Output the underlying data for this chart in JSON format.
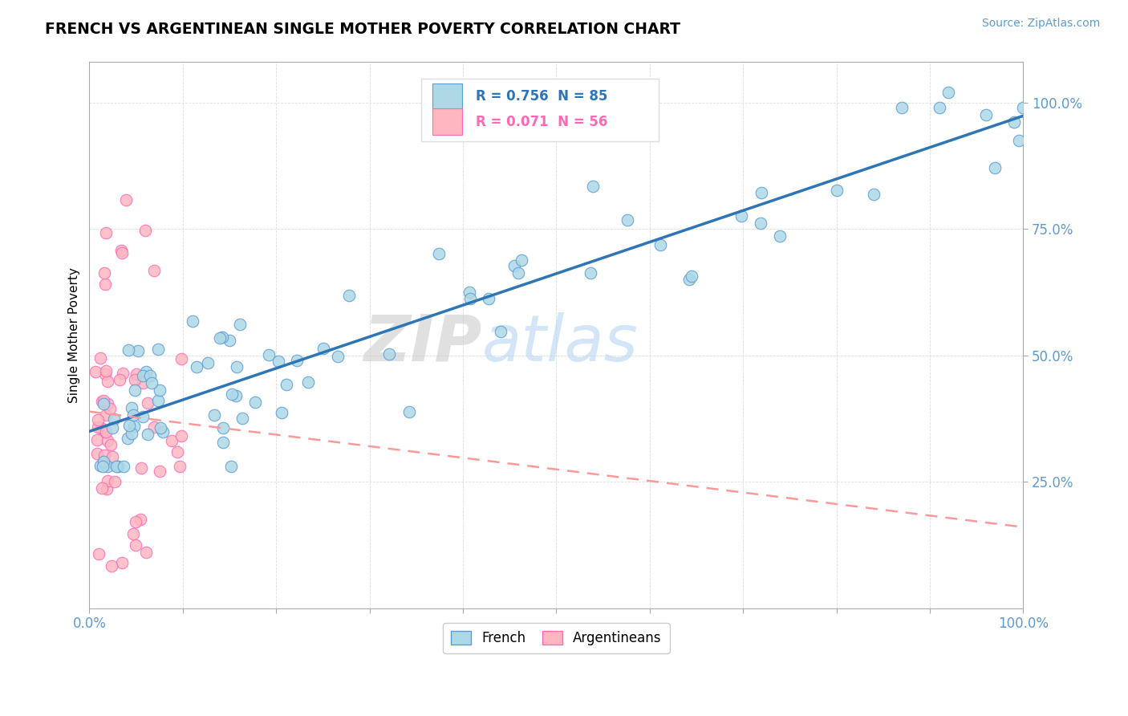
{
  "title": "FRENCH VS ARGENTINEAN SINGLE MOTHER POVERTY CORRELATION CHART",
  "source": "Source: ZipAtlas.com",
  "ylabel": "Single Mother Poverty",
  "xlim": [
    0.0,
    1.0
  ],
  "ylim": [
    0.0,
    1.08
  ],
  "french_color": "#ADD8E6",
  "french_edge_color": "#5B9BD5",
  "argentinean_color": "#FFB6C1",
  "argentinean_edge_color": "#FF69B4",
  "french_R": 0.756,
  "french_N": 85,
  "argentinean_R": 0.071,
  "argentinean_N": 56,
  "french_line_color": "#2E75B6",
  "argentinean_line_color": "#FF9999",
  "watermark_zip": "ZIP",
  "watermark_atlas": "atlas",
  "background_color": "#ffffff",
  "grid_color": "#DDDDDD",
  "axis_color": "#AAAAAA",
  "tick_label_color": "#5B9BD5",
  "title_color": "#000000",
  "ylabel_color": "#000000"
}
